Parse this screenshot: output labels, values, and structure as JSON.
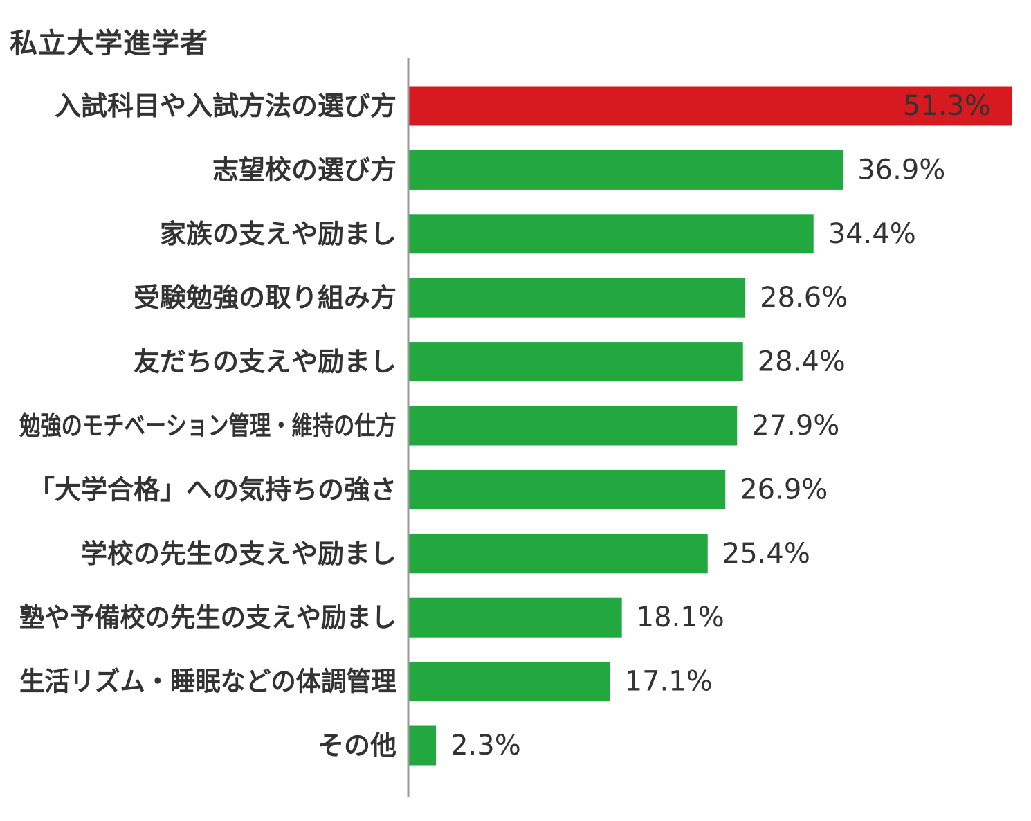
{
  "chart_data": {
    "type": "bar",
    "orientation": "horizontal",
    "title": "私立大学進学者",
    "xlabel": "",
    "ylabel": "",
    "xlim": [
      0,
      51.3
    ],
    "grid": false,
    "legend": "none",
    "highlight_color": "#d71920",
    "bar_color": "#22a83f",
    "categories": [
      "入試科目や入試方法の選び方",
      "志望校の選び方",
      "家族の支えや励まし",
      "受験勉強の取り組み方",
      "友だちの支えや励まし",
      "勉強のモチベーション管理・維持の仕方",
      "「大学合格」への気持ちの強さ",
      "学校の先生の支えや励まし",
      "塾や予備校の先生の支えや励まし",
      "生活リズム・睡眠などの体調管理",
      "その他"
    ],
    "values": [
      51.3,
      36.9,
      34.4,
      28.6,
      28.4,
      27.9,
      26.9,
      25.4,
      18.1,
      17.1,
      2.3
    ],
    "value_labels": [
      "51.3%",
      "36.9%",
      "34.4%",
      "28.6%",
      "28.4%",
      "27.9%",
      "26.9%",
      "25.4%",
      "18.1%",
      "17.1%",
      "2.3%"
    ],
    "highlighted": [
      0
    ]
  }
}
